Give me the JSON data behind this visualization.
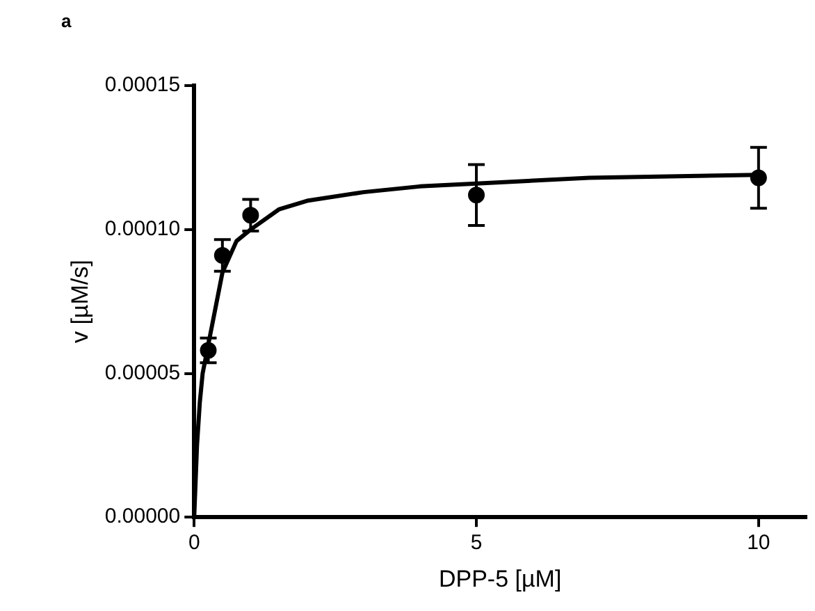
{
  "chart_data": {
    "type": "scatter",
    "title": "a",
    "xlabel": "DPP-5 [µM]",
    "ylabel": "v [µM/s]",
    "xlim": [
      0,
      10.84
    ],
    "xticks": [
      0,
      5,
      10
    ],
    "ylim": [
      0,
      0.00015
    ],
    "yticks": [
      {
        "value": 0,
        "label": "0.00000"
      },
      {
        "value": 5e-05,
        "label": "0.00005"
      },
      {
        "value": 0.0001,
        "label": "0.00010"
      },
      {
        "value": 0.00015,
        "label": "0.00015"
      }
    ],
    "grid": false,
    "legend": false,
    "series": [
      {
        "type": "scatter",
        "color": "#000000",
        "marker": "circle",
        "x": [
          0.25,
          0.5,
          1,
          5,
          10
        ],
        "values": [
          5.8e-05,
          9.1e-05,
          0.000105,
          0.000112,
          0.000118
        ],
        "errors": [
          4.3e-06,
          5.5e-06,
          5.5e-06,
          1.06e-05,
          1.06e-05
        ]
      },
      {
        "type": "line",
        "color": "#000000",
        "marker": "none",
        "line_style": "solid",
        "x": [
          0,
          0.02,
          0.05,
          0.1,
          0.15,
          0.2,
          0.3,
          0.5,
          0.75,
          1,
          1.5,
          2,
          3,
          4,
          5,
          7,
          10
        ],
        "values": [
          0,
          1e-05,
          2.5e-05,
          4e-05,
          5e-05,
          5.5e-05,
          6.5e-05,
          8.5e-05,
          9.6e-05,
          0.0001,
          0.000107,
          0.00011,
          0.000113,
          0.000115,
          0.000116,
          0.000118,
          0.000119
        ]
      }
    ]
  }
}
